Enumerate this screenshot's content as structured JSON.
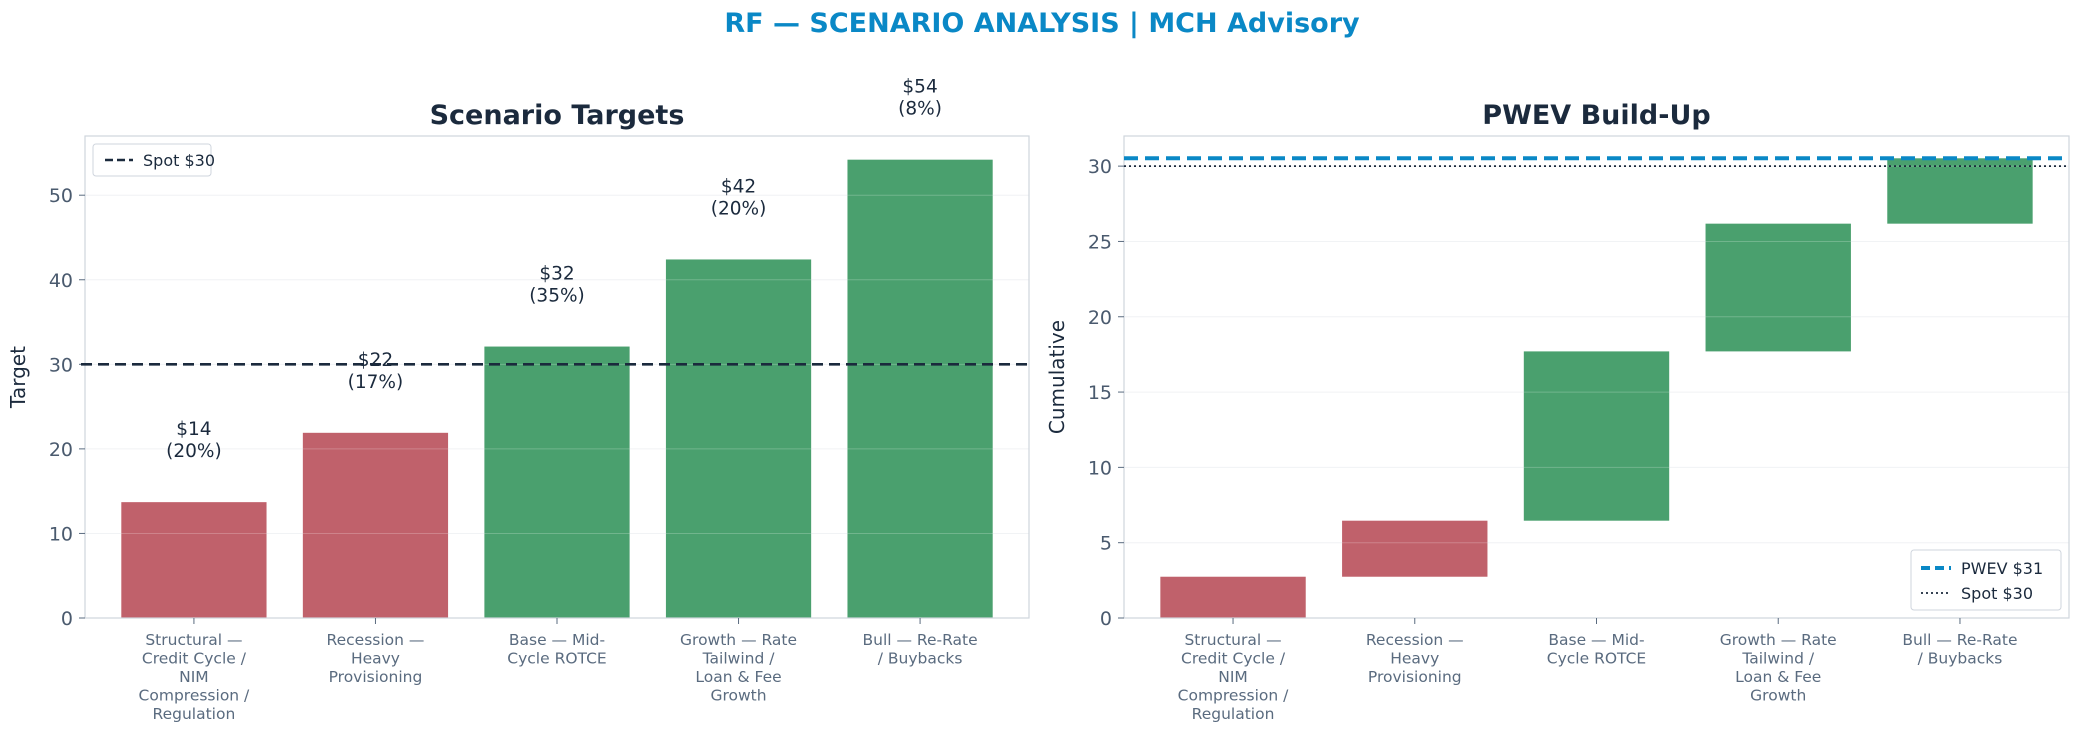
{
  "figure_title": "RF — SCENARIO ANALYSIS | MCH Advisory",
  "colors": {
    "title": "#0a88c6",
    "negative": "#c0616b",
    "positive": "#4aa06e",
    "spot_line": "#1b2a3d",
    "pwev_line": "#0a88c6"
  },
  "chart_data": [
    {
      "type": "bar",
      "title": "Scenario Targets",
      "ylabel": "Target",
      "xlabel": "",
      "ylim": [
        0,
        57
      ],
      "yticks": [
        0,
        10,
        20,
        30,
        40,
        50
      ],
      "grid": true,
      "legend": {
        "placement": "top-left",
        "entries": [
          "Spot $30"
        ]
      },
      "categories": [
        [
          "Structural —",
          "Credit Cycle /",
          "NIM",
          "Compression /",
          "Regulation"
        ],
        [
          "Recession —",
          "Heavy",
          "Provisioning"
        ],
        [
          "Base — Mid-",
          "Cycle ROTCE"
        ],
        [
          "Growth — Rate",
          "Tailwind /",
          "Loan & Fee",
          "Growth"
        ],
        [
          "Bull — Re-Rate",
          "/ Buybacks"
        ]
      ],
      "values": [
        13.7,
        21.9,
        32.1,
        42.4,
        54.2
      ],
      "bar_colors": [
        "#c0616b",
        "#c0616b",
        "#4aa06e",
        "#4aa06e",
        "#4aa06e"
      ],
      "data_labels": [
        [
          "$14",
          "(20%)"
        ],
        [
          "$22",
          "(17%)"
        ],
        [
          "$32",
          "(35%)"
        ],
        [
          "$42",
          "(20%)"
        ],
        [
          "$54",
          "(8%)"
        ]
      ],
      "reference_lines": [
        {
          "label": "Spot $30",
          "value": 30,
          "style": "dashed"
        }
      ]
    },
    {
      "type": "waterfall",
      "title": "PWEV Build-Up",
      "ylabel": "Cumulative",
      "xlabel": "",
      "ylim": [
        0,
        32
      ],
      "yticks": [
        0,
        5,
        10,
        15,
        20,
        25,
        30
      ],
      "grid": true,
      "legend": {
        "placement": "bottom-right",
        "entries": [
          "PWEV $31",
          "Spot $30"
        ]
      },
      "categories": [
        [
          "Structural —",
          "Credit Cycle /",
          "NIM",
          "Compression /",
          "Regulation"
        ],
        [
          "Recession —",
          "Heavy",
          "Provisioning"
        ],
        [
          "Base — Mid-",
          "Cycle ROTCE"
        ],
        [
          "Growth — Rate",
          "Tailwind /",
          "Loan & Fee",
          "Growth"
        ],
        [
          "Bull — Re-Rate",
          "/ Buybacks"
        ]
      ],
      "segments": [
        {
          "start": 0,
          "end": 2.74
        },
        {
          "start": 2.74,
          "end": 6.46
        },
        {
          "start": 6.46,
          "end": 17.7
        },
        {
          "start": 17.7,
          "end": 26.18
        },
        {
          "start": 26.18,
          "end": 30.52
        }
      ],
      "bar_colors": [
        "#c0616b",
        "#c0616b",
        "#4aa06e",
        "#4aa06e",
        "#4aa06e"
      ],
      "reference_lines": [
        {
          "label": "PWEV $31",
          "value": 30.52,
          "style": "dashed"
        },
        {
          "label": "Spot $30",
          "value": 30,
          "style": "dotted"
        }
      ]
    }
  ]
}
